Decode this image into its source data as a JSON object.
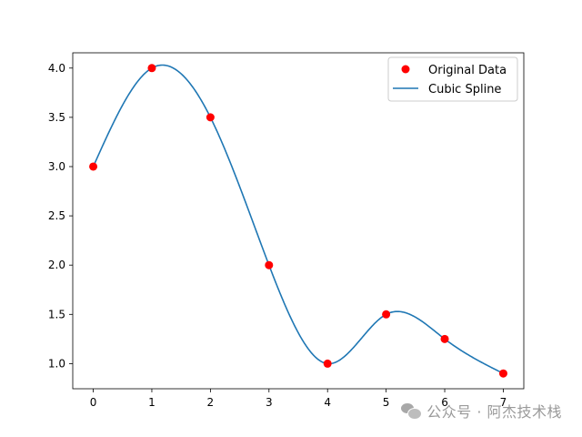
{
  "chart_data": {
    "type": "line",
    "title": "",
    "xlabel": "",
    "ylabel": "",
    "xlim": [
      -0.35,
      7.35
    ],
    "ylim": [
      0.745,
      4.155
    ],
    "xticks": [
      0,
      1,
      2,
      3,
      4,
      5,
      6,
      7
    ],
    "yticks": [
      1.0,
      1.5,
      2.0,
      2.5,
      3.0,
      3.5,
      4.0
    ],
    "x_tick_labels": [
      "0",
      "1",
      "2",
      "3",
      "4",
      "5",
      "6",
      "7"
    ],
    "y_tick_labels": [
      "1.0",
      "1.5",
      "2.0",
      "2.5",
      "3.0",
      "3.5",
      "4.0"
    ],
    "grid": false,
    "legend_position": "top-right",
    "series": [
      {
        "name": "Original Data",
        "kind": "scatter",
        "color": "#ff0000",
        "x": [
          0,
          1,
          2,
          3,
          4,
          5,
          6,
          7
        ],
        "y": [
          3.0,
          4.0,
          3.5,
          2.0,
          1.0,
          1.5,
          1.25,
          0.9
        ]
      },
      {
        "name": "Cubic Spline",
        "kind": "line",
        "color": "#1f77b4",
        "interpolation": "natural cubic spline through Original Data"
      }
    ]
  },
  "watermark": {
    "icon": "wechat-icon",
    "text": "公众号 · 阿杰技术栈"
  }
}
